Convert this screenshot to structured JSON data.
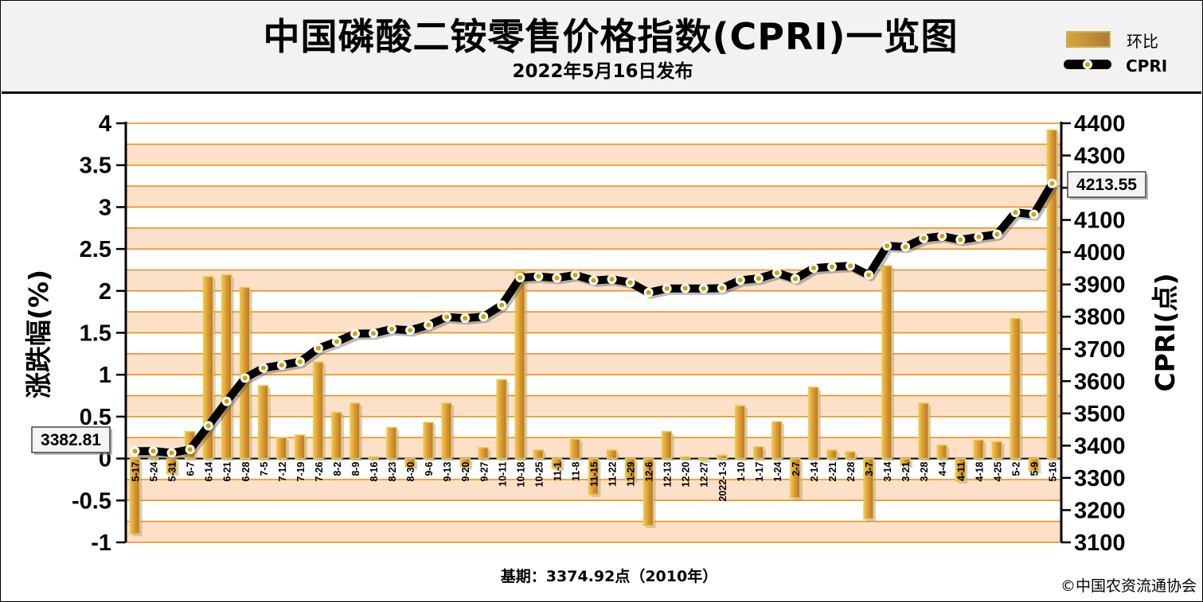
{
  "header": {
    "title": "中国磷酸二铵零售价格指数(CPRI)一览图",
    "subtitle": "2022年5月16日发布"
  },
  "legend": {
    "bar_label": "环比",
    "line_label": "CPRI"
  },
  "footer": {
    "base_note": "基期：3374.92点（2010年）",
    "copyright": "©中国农资流通协会"
  },
  "colors": {
    "bar_fill": "#d9962e",
    "bar_edge": "#e8c84a",
    "band_light": "#fde0c8",
    "gridline": "#f08a10",
    "line": "#000000",
    "marker": "#d4a000"
  },
  "chart_data": {
    "type": "bar",
    "categories": [
      "5-17",
      "5-24",
      "5-31",
      "6-7",
      "6-14",
      "6-21",
      "6-28",
      "7-5",
      "7-12",
      "7-19",
      "7-26",
      "8-2",
      "8-9",
      "8-16",
      "8-23",
      "8-30",
      "9-6",
      "9-13",
      "9-20",
      "9-27",
      "10-11",
      "10-18",
      "10-25",
      "11-1",
      "11-8",
      "11-15",
      "11-22",
      "11-29",
      "12-6",
      "12-13",
      "12-20",
      "12-27",
      "2022-1-3",
      "1-10",
      "1-17",
      "1-24",
      "2-7",
      "2-14",
      "2-21",
      "2-28",
      "3-7",
      "3-14",
      "3-21",
      "3-28",
      "4-4",
      "4-11",
      "4-18",
      "4-25",
      "5-2",
      "5-9",
      "5-16"
    ],
    "series": [
      {
        "name": "环比",
        "axis": "left",
        "values": [
          -0.9,
          0.02,
          -0.18,
          0.32,
          2.17,
          2.19,
          2.04,
          0.87,
          0.25,
          0.28,
          1.15,
          0.55,
          0.66,
          0.02,
          0.37,
          -0.1,
          0.43,
          0.66,
          -0.1,
          0.13,
          0.94,
          2.23,
          0.1,
          -0.12,
          0.23,
          -0.43,
          0.1,
          -0.26,
          -0.8,
          0.32,
          0.02,
          -0.02,
          0.04,
          0.63,
          0.14,
          0.44,
          -0.47,
          0.85,
          0.1,
          0.08,
          -0.72,
          2.3,
          -0.08,
          0.66,
          0.16,
          -0.27,
          0.22,
          0.2,
          1.67,
          -0.15,
          3.92
        ]
      },
      {
        "name": "CPRI",
        "axis": "right",
        "values": [
          3382.81,
          3383.5,
          3377.4,
          3388.2,
          3461.6,
          3537.4,
          3609.6,
          3641.0,
          3649.9,
          3660.2,
          3702.3,
          3722.6,
          3747.2,
          3748.0,
          3761.8,
          3758.0,
          3774.2,
          3799.2,
          3795.4,
          3800.3,
          3836.0,
          3921.0,
          3925.0,
          3920.3,
          3929.3,
          3912.4,
          3916.3,
          3906.1,
          3874.8,
          3887.2,
          3888.0,
          3887.2,
          3888.8,
          3913.3,
          3918.8,
          3936.0,
          3917.5,
          3950.8,
          3954.7,
          3957.9,
          3929.4,
          4019.8,
          4016.6,
          4043.1,
          4049.6,
          4038.7,
          4047.6,
          4055.7,
          4123.6,
          4117.4,
          4213.55
        ]
      }
    ],
    "ylabel_left": "涨跌幅(%)",
    "ylabel_right": "CPRI(点)",
    "ylim_left": [
      -1,
      4
    ],
    "ylim_right": [
      3100,
      4400
    ],
    "yticks_left": [
      "4",
      "3.5",
      "3",
      "2.5",
      "2",
      "1.5",
      "1",
      "0.5",
      "0",
      "-0.5",
      "-1"
    ],
    "yticks_right": [
      "4400",
      "4300",
      "4200",
      "4100",
      "4000",
      "3900",
      "3800",
      "3700",
      "3600",
      "3500",
      "3400",
      "3300",
      "3200",
      "3100"
    ],
    "callouts": {
      "start": "3382.81",
      "end": "4213.55"
    },
    "grid": true,
    "legend_position": "top-right"
  }
}
